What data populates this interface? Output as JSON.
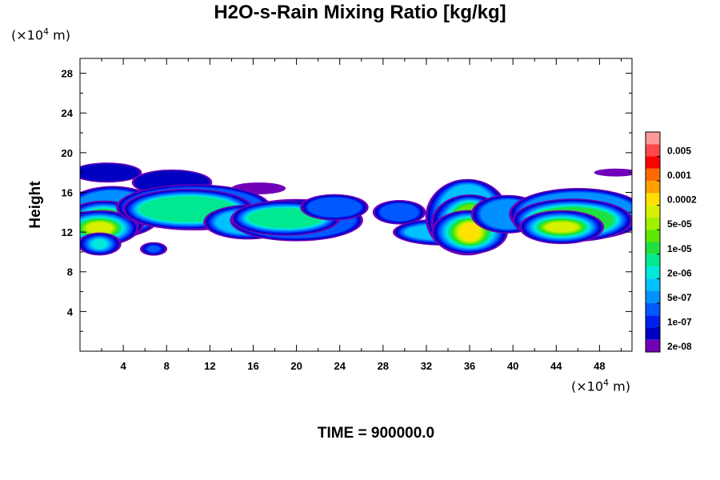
{
  "chart_data": {
    "type": "heatmap",
    "title": "H2O-s-Rain Mixing Ratio [kg/kg]",
    "ylabel": "Height",
    "x_unit": "(×10⁴ m)",
    "y_unit": "(×10⁴ m)",
    "xlim": [
      0,
      51
    ],
    "ylim": [
      0,
      29.5
    ],
    "x_ticks": [
      4,
      8,
      12,
      16,
      20,
      24,
      28,
      32,
      36,
      40,
      44,
      48
    ],
    "y_ticks": [
      4,
      8,
      12,
      16,
      20,
      24,
      28
    ],
    "colorbar": {
      "labels": [
        "0.005",
        "0.001",
        "0.0002",
        "5e-05",
        "1e-05",
        "2e-06",
        "5e-07",
        "1e-07",
        "2e-08"
      ],
      "colors_top_to_bottom": [
        "#ff9a9a",
        "#ff4848",
        "#ff0000",
        "#ff6a00",
        "#ffa000",
        "#ffe000",
        "#d8f000",
        "#a0f000",
        "#60e800",
        "#20e040",
        "#00e890",
        "#00e8d8",
        "#00c0ff",
        "#0090ff",
        "#0058ff",
        "#0020f0",
        "#0000c0",
        "#7000b8"
      ]
    },
    "field_blobs": [
      {
        "x": 2.5,
        "y": 18.0,
        "rx": 3.0,
        "ry": 0.9,
        "level": 16
      },
      {
        "x": 8.5,
        "y": 17.0,
        "rx": 3.5,
        "ry": 1.2,
        "level": 16
      },
      {
        "x": 16.5,
        "y": 16.4,
        "rx": 2.5,
        "ry": 0.6,
        "level": 17
      },
      {
        "x": 49.5,
        "y": 18.0,
        "rx": 2.0,
        "ry": 0.4,
        "level": 17
      },
      {
        "x": 3.0,
        "y": 14.0,
        "rx": 3.8,
        "ry": 2.2,
        "level": 13
      },
      {
        "x": 2.2,
        "y": 13.0,
        "rx": 2.0,
        "ry": 1.3,
        "level": 9
      },
      {
        "x": 1.8,
        "y": 12.4,
        "rx": 1.2,
        "ry": 0.6,
        "level": 6
      },
      {
        "x": 10.5,
        "y": 14.5,
        "rx": 6.5,
        "ry": 2.0,
        "level": 14
      },
      {
        "x": 10.0,
        "y": 14.3,
        "rx": 4.5,
        "ry": 1.3,
        "level": 10
      },
      {
        "x": 15.5,
        "y": 13.0,
        "rx": 3.0,
        "ry": 1.2,
        "level": 12
      },
      {
        "x": 20.0,
        "y": 13.2,
        "rx": 5.5,
        "ry": 1.8,
        "level": 14
      },
      {
        "x": 19.0,
        "y": 13.4,
        "rx": 3.5,
        "ry": 1.0,
        "level": 10
      },
      {
        "x": 23.5,
        "y": 14.5,
        "rx": 2.5,
        "ry": 1.0,
        "level": 14
      },
      {
        "x": 29.5,
        "y": 14.0,
        "rx": 1.8,
        "ry": 0.9,
        "level": 14
      },
      {
        "x": 33.5,
        "y": 12.0,
        "rx": 3.5,
        "ry": 0.8,
        "level": 12
      },
      {
        "x": 35.8,
        "y": 13.5,
        "rx": 2.8,
        "ry": 3.3,
        "level": 12
      },
      {
        "x": 36.0,
        "y": 12.8,
        "rx": 1.6,
        "ry": 2.0,
        "level": 8
      },
      {
        "x": 36.0,
        "y": 12.0,
        "rx": 0.9,
        "ry": 0.9,
        "level": 5
      },
      {
        "x": 39.5,
        "y": 13.8,
        "rx": 2.5,
        "ry": 1.5,
        "level": 13
      },
      {
        "x": 46.0,
        "y": 13.8,
        "rx": 5.5,
        "ry": 2.2,
        "level": 13
      },
      {
        "x": 45.5,
        "y": 13.2,
        "rx": 3.8,
        "ry": 1.3,
        "level": 9
      },
      {
        "x": 44.5,
        "y": 12.5,
        "rx": 1.5,
        "ry": 0.5,
        "level": 6
      },
      {
        "x": 6.8,
        "y": 10.3,
        "rx": 0.6,
        "ry": 0.35,
        "level": 14
      },
      {
        "x": 1.8,
        "y": 10.8,
        "rx": 0.7,
        "ry": 0.5,
        "level": 11
      }
    ],
    "time_label": "TIME = 900000.0"
  }
}
